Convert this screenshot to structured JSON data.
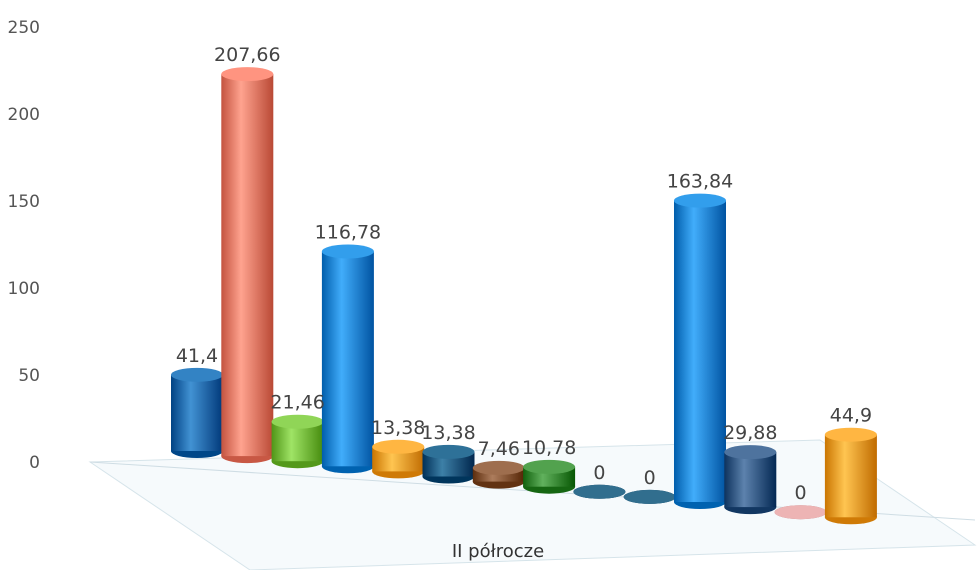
{
  "chart_data": {
    "type": "bar",
    "style": "3d-cylinder",
    "title": "",
    "xlabel": "",
    "ylabel": "",
    "ylim": [
      0,
      250
    ],
    "y_ticks": [
      0,
      50,
      100,
      150,
      200,
      250
    ],
    "grid": false,
    "legend": "none",
    "categories": [
      "II półrocze"
    ],
    "series": [
      {
        "value": 41.4,
        "label": "41,4",
        "color": "#1f6fb0"
      },
      {
        "value": 207.66,
        "label": "207,66",
        "color": "#f0806c"
      },
      {
        "value": 21.46,
        "label": "21,46",
        "color": "#7cc143"
      },
      {
        "value": 116.78,
        "label": "116,78",
        "color": "#1e8ad8"
      },
      {
        "value": 13.38,
        "label": "13,38",
        "color": "#f7a22e"
      },
      {
        "value": 13.38,
        "label": "13,38",
        "color": "#1a5d84"
      },
      {
        "value": 7.46,
        "label": "7,46",
        "color": "#8a5a3a"
      },
      {
        "value": 10.78,
        "label": "10,78",
        "color": "#3e8e3a"
      },
      {
        "value": 0,
        "label": "0",
        "color": "#1d5a7a"
      },
      {
        "value": 0,
        "label": "0",
        "color": "#1d5a7a"
      },
      {
        "value": 163.84,
        "label": "163,84",
        "color": "#1e8ad8"
      },
      {
        "value": 29.88,
        "label": "29,88",
        "color": "#3a5f8a"
      },
      {
        "value": 0,
        "label": "0",
        "color": "#d9a0a0"
      },
      {
        "value": 44.9,
        "label": "44,9",
        "color": "#f7a22e"
      }
    ]
  }
}
